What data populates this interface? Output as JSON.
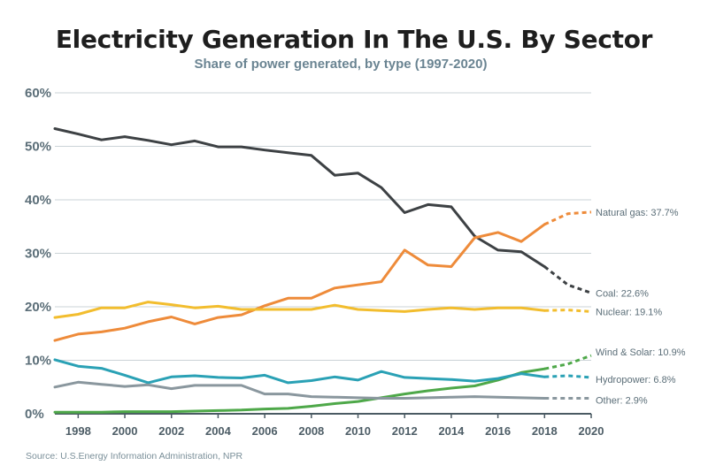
{
  "chart_data": {
    "type": "line",
    "title": "Electricity Generation In The U.S. By Sector",
    "subtitle": "Share of power generated, by type (1997-2020)",
    "source": "Source: U.S.Energy Information Administration, NPR",
    "xlabel": "",
    "ylabel": "",
    "xlim": [
      1997,
      2020
    ],
    "ylim": [
      0,
      60
    ],
    "x_ticks": [
      1998,
      2000,
      2002,
      2004,
      2006,
      2008,
      2010,
      2012,
      2014,
      2016,
      2018,
      2020
    ],
    "y_ticks": [
      {
        "value": 0,
        "label": "0%"
      },
      {
        "value": 10,
        "label": "10%"
      },
      {
        "value": 20,
        "label": "20%"
      },
      {
        "value": 30,
        "label": "30%"
      },
      {
        "value": 40,
        "label": "40%"
      },
      {
        "value": 50,
        "label": "50%"
      },
      {
        "value": 60,
        "label": "60%"
      }
    ],
    "grid": true,
    "projection_style": "dashed line for 2018-2020",
    "x": [
      1997,
      1998,
      1999,
      2000,
      2001,
      2002,
      2003,
      2004,
      2005,
      2006,
      2007,
      2008,
      2009,
      2010,
      2011,
      2012,
      2013,
      2014,
      2015,
      2016,
      2017,
      2018,
      2019,
      2020
    ],
    "series": [
      {
        "name": "Coal",
        "end_label": "Coal: 22.6%",
        "color": "#3d4144",
        "values": [
          53.3,
          52.3,
          51.2,
          51.8,
          51.1,
          50.3,
          51.0,
          49.9,
          49.9,
          49.3,
          48.8,
          48.3,
          44.6,
          45.0,
          42.3,
          37.6,
          39.1,
          38.7,
          33.2,
          30.6,
          30.3,
          27.5,
          24.1,
          22.6
        ]
      },
      {
        "name": "Natural gas",
        "end_label": "Natural gas: 37.7%",
        "color": "#ee8b3a",
        "values": [
          13.7,
          14.9,
          15.3,
          16.0,
          17.2,
          18.1,
          16.8,
          18.0,
          18.5,
          20.2,
          21.6,
          21.6,
          23.5,
          24.1,
          24.7,
          30.6,
          27.8,
          27.5,
          32.9,
          33.9,
          32.2,
          35.4,
          37.4,
          37.7
        ]
      },
      {
        "name": "Nuclear",
        "end_label": "Nuclear: 19.1%",
        "color": "#f2bd2e",
        "values": [
          18.0,
          18.6,
          19.8,
          19.8,
          20.9,
          20.4,
          19.8,
          20.1,
          19.5,
          19.5,
          19.5,
          19.5,
          20.3,
          19.5,
          19.3,
          19.1,
          19.5,
          19.8,
          19.5,
          19.8,
          19.8,
          19.3,
          19.4,
          19.1
        ]
      },
      {
        "name": "Wind & Solar",
        "end_label": "Wind & Solar: 10.9%",
        "color": "#4ea849",
        "values": [
          0.3,
          0.3,
          0.3,
          0.4,
          0.4,
          0.4,
          0.5,
          0.6,
          0.7,
          0.9,
          1.0,
          1.4,
          1.9,
          2.3,
          3.0,
          3.7,
          4.3,
          4.8,
          5.2,
          6.3,
          7.7,
          8.4,
          9.3,
          10.9
        ]
      },
      {
        "name": "Hydropower",
        "end_label": "Hydropower: 6.8%",
        "color": "#2aa1b5",
        "values": [
          10.1,
          8.9,
          8.5,
          7.2,
          5.8,
          6.9,
          7.1,
          6.8,
          6.7,
          7.2,
          5.8,
          6.2,
          6.9,
          6.3,
          7.9,
          6.8,
          6.6,
          6.4,
          6.1,
          6.6,
          7.5,
          6.9,
          7.1,
          6.8
        ]
      },
      {
        "name": "Other",
        "end_label": "Other: 2.9%",
        "color": "#8a979e",
        "values": [
          5.0,
          5.9,
          5.5,
          5.1,
          5.4,
          4.7,
          5.3,
          5.3,
          5.3,
          3.7,
          3.7,
          3.2,
          3.1,
          3.0,
          2.9,
          2.9,
          3.0,
          3.1,
          3.2,
          3.1,
          3.0,
          2.9,
          2.9,
          2.9
        ]
      }
    ]
  }
}
